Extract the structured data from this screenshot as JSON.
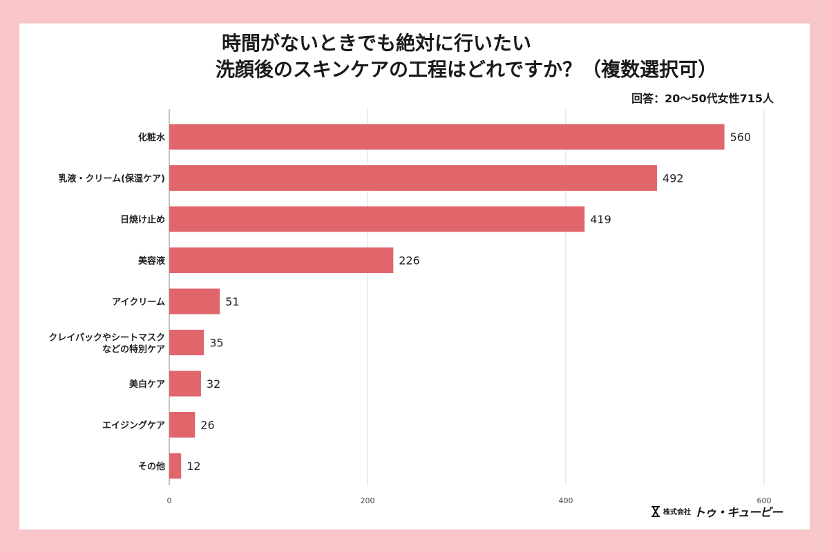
{
  "title": {
    "line1": "時間がないときでも絶対に行いたい",
    "line2": "洗顔後のスキンケアの工程はどれですか？（複数選択可）"
  },
  "respondents": "回答：20〜50代女性715人",
  "logo": {
    "company_prefix": "株式会社",
    "brand": "トゥ・キュービー"
  },
  "colors": {
    "bar": "#e0666c",
    "background": "#f8c5c9",
    "grid": "#d9d9e0"
  },
  "chart_data": {
    "type": "bar",
    "orientation": "horizontal",
    "categories": [
      "化粧水",
      "乳液・クリーム(保湿ケア)",
      "日焼け止め",
      "美容液",
      "アイクリーム",
      "クレイパックやシートマスク などの特別ケア",
      "美白ケア",
      "エイジングケア",
      "その他"
    ],
    "values": [
      560,
      492,
      419,
      226,
      51,
      35,
      32,
      26,
      12
    ],
    "xlim": [
      0,
      600
    ],
    "xticks": [
      0,
      200,
      400,
      600
    ],
    "grid": true,
    "legend": "none"
  }
}
